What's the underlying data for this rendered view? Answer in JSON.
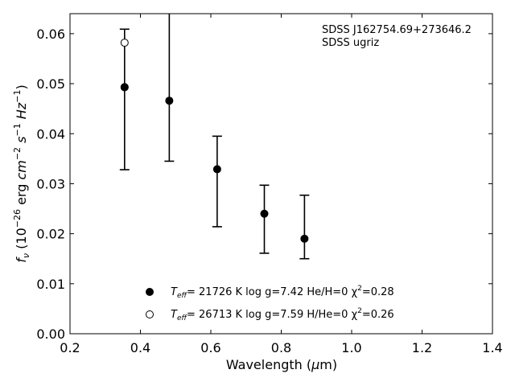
{
  "chart_data": {
    "type": "scatter",
    "title": "",
    "annotation": [
      "SDSS J162754.69+273646.2",
      "SDSS ugriz"
    ],
    "xlabel": "Wavelength (μm)",
    "ylabel": "f_ν (10^-26 erg cm^-2 s^-1 Hz^-1)",
    "xlim": [
      0.2,
      1.4
    ],
    "ylim": [
      0.0,
      0.064
    ],
    "xticks": [
      0.2,
      0.4,
      0.6,
      0.8,
      1.0,
      1.2,
      1.4
    ],
    "xtick_labels": [
      "0.2",
      "0.4",
      "0.6",
      "0.8",
      "1.0",
      "1.2",
      "1.4"
    ],
    "yticks": [
      0.0,
      0.01,
      0.02,
      0.03,
      0.04,
      0.05,
      0.06
    ],
    "ytick_labels": [
      "0.00",
      "0.01",
      "0.02",
      "0.03",
      "0.04",
      "0.05",
      "0.06"
    ],
    "grid": false,
    "legend_position": "bottom-center",
    "observed": {
      "x": [
        0.355,
        0.482,
        0.618,
        0.752,
        0.866
      ],
      "y": [
        0.0493,
        0.0466,
        0.0329,
        0.024,
        0.019
      ],
      "err_lower": [
        0.0328,
        0.0345,
        0.0214,
        0.0161,
        0.015
      ],
      "err_upper": [
        0.0609,
        0.065,
        0.0395,
        0.0297,
        0.0277
      ]
    },
    "series": [
      {
        "name": "T_eff= 21726 K  log g=7.42  He/H=0  χ^2=0.28",
        "marker": "filled-circle",
        "x": [
          0.355
        ],
        "y": [
          0.0493
        ]
      },
      {
        "name": "T_eff= 26713 K  log g=7.59  H/He=0  χ^2=0.26",
        "marker": "open-circle",
        "x": [
          0.355
        ],
        "y": [
          0.0582
        ]
      }
    ],
    "legend": [
      {
        "marker": "filled-circle",
        "teff_prefix": "T",
        "teff_sub": "eff",
        "rest": "= 21726 K  log g=7.42  He/H=0  χ",
        "sup": "2",
        "tail": "=0.28"
      },
      {
        "marker": "open-circle",
        "teff_prefix": "T",
        "teff_sub": "eff",
        "rest": "= 26713 K  log g=7.59  H/He=0  χ",
        "sup": "2",
        "tail": "=0.26"
      }
    ]
  },
  "colors": {
    "marker": "#000000",
    "open_marker_fill": "#ffffff",
    "background": "#ffffff"
  }
}
